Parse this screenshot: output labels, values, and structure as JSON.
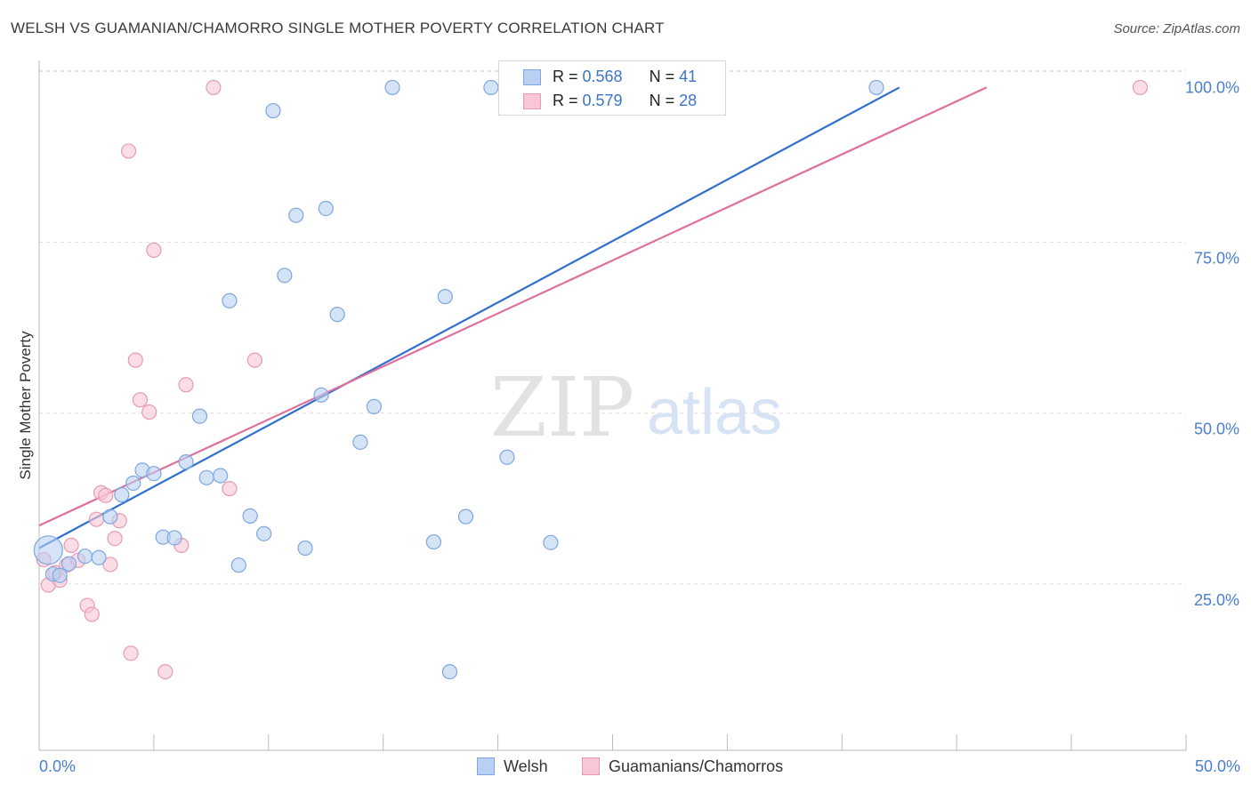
{
  "title": "WELSH VS GUAMANIAN/CHAMORRO SINGLE MOTHER POVERTY CORRELATION CHART",
  "source": "Source: ZipAtlas.com",
  "watermark": {
    "zip": "ZIP",
    "atlas": "atlas"
  },
  "colors": {
    "welsh_fill": "#b9d0f2",
    "welsh_stroke": "#7ea6e0",
    "welsh_line": "#2f6fce",
    "guam_fill": "#f8c6d6",
    "guam_stroke": "#e89ab3",
    "guam_line": "#e0709a",
    "tick_text": "#4a7fd0",
    "grid": "#dddddd"
  },
  "legend_top": {
    "welsh": {
      "r_label": "R = ",
      "r_value": "0.568",
      "n_label": "N = ",
      "n_value": "41"
    },
    "guam": {
      "r_label": "R = ",
      "r_value": "0.579",
      "n_label": "N = ",
      "n_value": "28"
    }
  },
  "legend_bottom": {
    "welsh": "Welsh",
    "guam": "Guamanians/Chamorros"
  },
  "chart_data": {
    "type": "scatter",
    "title": "WELSH VS GUAMANIAN/CHAMORRO SINGLE MOTHER POVERTY CORRELATION CHART",
    "xlabel": "",
    "ylabel": "Single Mother Poverty",
    "xlim": [
      0,
      50
    ],
    "ylim": [
      3,
      105
    ],
    "x_tick_labels": [
      "0.0%",
      "50.0%"
    ],
    "y_ticks": [
      25,
      50,
      75,
      100
    ],
    "y_tick_labels": [
      "25.0%",
      "50.0%",
      "75.0%",
      "100.0%"
    ],
    "grid": true,
    "legend_position": "top-center",
    "series": [
      {
        "name": "Welsh",
        "points": [
          [
            0.4,
            32.3
          ],
          [
            0.6,
            28.8
          ],
          [
            0.9,
            28.6
          ],
          [
            1.3,
            30.3
          ],
          [
            2.0,
            31.4
          ],
          [
            2.6,
            31.2
          ],
          [
            3.1,
            37.2
          ],
          [
            3.6,
            40.4
          ],
          [
            4.1,
            42.1
          ],
          [
            4.5,
            44.0
          ],
          [
            5.0,
            43.5
          ],
          [
            5.4,
            34.2
          ],
          [
            5.9,
            34.1
          ],
          [
            6.4,
            45.2
          ],
          [
            7.0,
            51.9
          ],
          [
            7.3,
            42.9
          ],
          [
            7.9,
            43.2
          ],
          [
            8.3,
            68.8
          ],
          [
            8.7,
            30.1
          ],
          [
            9.2,
            37.3
          ],
          [
            9.8,
            34.7
          ],
          [
            10.2,
            96.6
          ],
          [
            10.7,
            72.5
          ],
          [
            11.2,
            81.3
          ],
          [
            11.6,
            32.6
          ],
          [
            12.3,
            55.0
          ],
          [
            12.5,
            82.3
          ],
          [
            13.0,
            66.8
          ],
          [
            14.0,
            48.1
          ],
          [
            14.6,
            53.3
          ],
          [
            15.4,
            100.0
          ],
          [
            17.2,
            33.5
          ],
          [
            17.7,
            69.4
          ],
          [
            17.9,
            14.5
          ],
          [
            18.6,
            37.2
          ],
          [
            19.7,
            100.0
          ],
          [
            20.4,
            45.9
          ],
          [
            22.3,
            33.4
          ],
          [
            22.8,
            100.0
          ],
          [
            24.3,
            100.0
          ],
          [
            36.5,
            100.0
          ]
        ],
        "trend": {
          "x": [
            0,
            37.5
          ],
          "y": [
            32.6,
            100.0
          ]
        }
      },
      {
        "name": "Guamanians/Chamorros",
        "points": [
          [
            0.2,
            30.9
          ],
          [
            0.4,
            27.2
          ],
          [
            0.7,
            29.0
          ],
          [
            0.9,
            27.9
          ],
          [
            1.2,
            30.1
          ],
          [
            1.4,
            33.0
          ],
          [
            1.7,
            30.8
          ],
          [
            2.1,
            24.2
          ],
          [
            2.3,
            22.9
          ],
          [
            2.5,
            36.8
          ],
          [
            2.7,
            40.7
          ],
          [
            2.9,
            40.3
          ],
          [
            3.1,
            30.2
          ],
          [
            3.3,
            34.0
          ],
          [
            3.5,
            36.6
          ],
          [
            3.9,
            90.7
          ],
          [
            4.0,
            17.2
          ],
          [
            4.2,
            60.1
          ],
          [
            4.4,
            54.3
          ],
          [
            4.8,
            52.5
          ],
          [
            5.0,
            76.2
          ],
          [
            5.5,
            14.5
          ],
          [
            6.2,
            33.0
          ],
          [
            6.4,
            56.5
          ],
          [
            7.6,
            100.0
          ],
          [
            8.3,
            41.3
          ],
          [
            9.4,
            60.1
          ],
          [
            48.0,
            100.0
          ]
        ],
        "trend": {
          "x": [
            0,
            41.3
          ],
          "y": [
            35.9,
            100.0
          ]
        }
      }
    ]
  }
}
